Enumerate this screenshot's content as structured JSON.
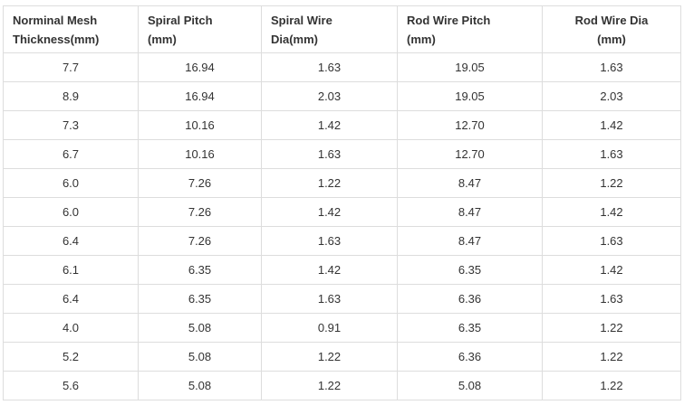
{
  "table": {
    "headers": [
      [
        "Norminal Mesh",
        "Thickness(mm)"
      ],
      [
        "Spiral Pitch",
        "(mm)"
      ],
      [
        "Spiral Wire",
        "Dia(mm)"
      ],
      [
        "Rod Wire Pitch",
        "(mm)"
      ],
      [
        "Rod Wire Dia",
        "(mm)"
      ]
    ],
    "rows": [
      [
        "7.7",
        "16.94",
        "1.63",
        "19.05",
        "1.63"
      ],
      [
        "8.9",
        "16.94",
        "2.03",
        "19.05",
        "2.03"
      ],
      [
        "7.3",
        "10.16",
        "1.42",
        "12.70",
        "1.42"
      ],
      [
        "6.7",
        "10.16",
        "1.63",
        "12.70",
        "1.63"
      ],
      [
        "6.0",
        "7.26",
        "1.22",
        "8.47",
        "1.22"
      ],
      [
        "6.0",
        "7.26",
        "1.42",
        "8.47",
        "1.42"
      ],
      [
        "6.4",
        "7.26",
        "1.63",
        "8.47",
        "1.63"
      ],
      [
        "6.1",
        "6.35",
        "1.42",
        "6.35",
        "1.42"
      ],
      [
        "6.4",
        "6.35",
        "1.63",
        "6.36",
        "1.63"
      ],
      [
        "4.0",
        "5.08",
        "0.91",
        "6.35",
        "1.22"
      ],
      [
        "5.2",
        "5.08",
        "1.22",
        "6.36",
        "1.22"
      ],
      [
        "5.6",
        "5.08",
        "1.22",
        "5.08",
        "1.22"
      ]
    ]
  }
}
